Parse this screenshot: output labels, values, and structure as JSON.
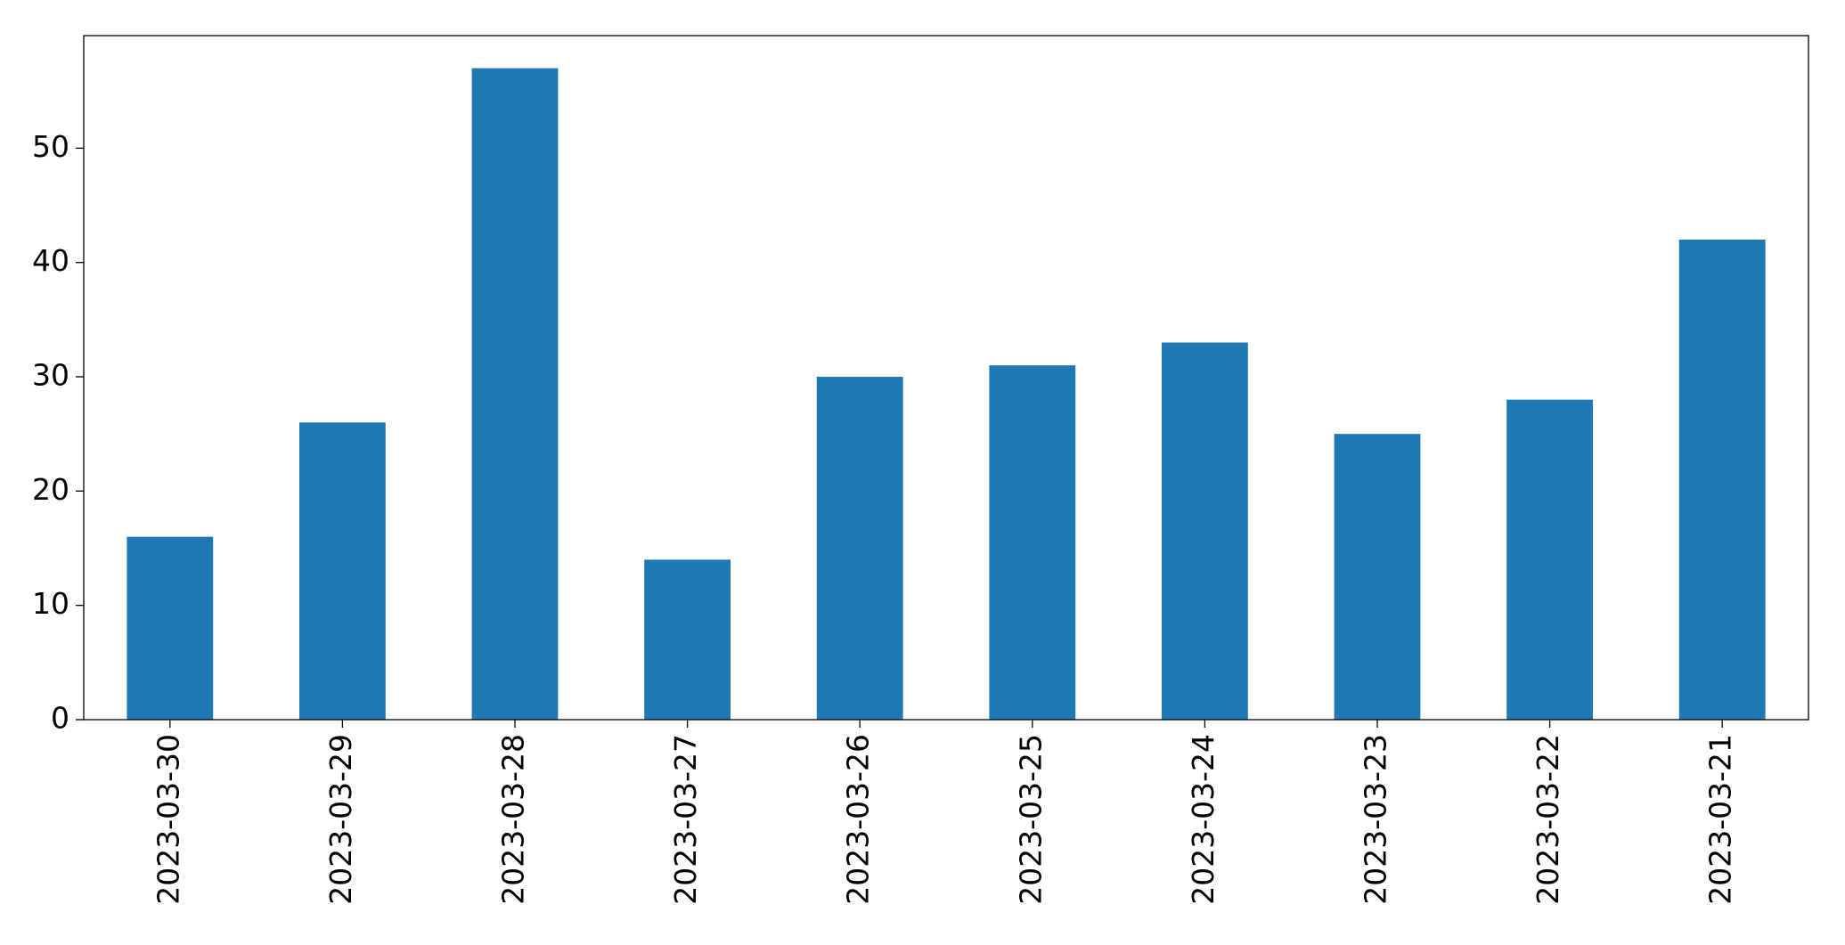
{
  "chart_data": {
    "type": "bar",
    "categories": [
      "2023-03-30",
      "2023-03-29",
      "2023-03-28",
      "2023-03-27",
      "2023-03-26",
      "2023-03-25",
      "2023-03-24",
      "2023-03-23",
      "2023-03-22",
      "2023-03-21"
    ],
    "values": [
      16,
      26,
      57,
      14,
      30,
      31,
      33,
      25,
      28,
      42
    ],
    "color": "#1f77b4",
    "ylim": [
      0,
      59.85
    ],
    "yticks": [
      0,
      10,
      20,
      30,
      40,
      50
    ],
    "grid": false
  }
}
